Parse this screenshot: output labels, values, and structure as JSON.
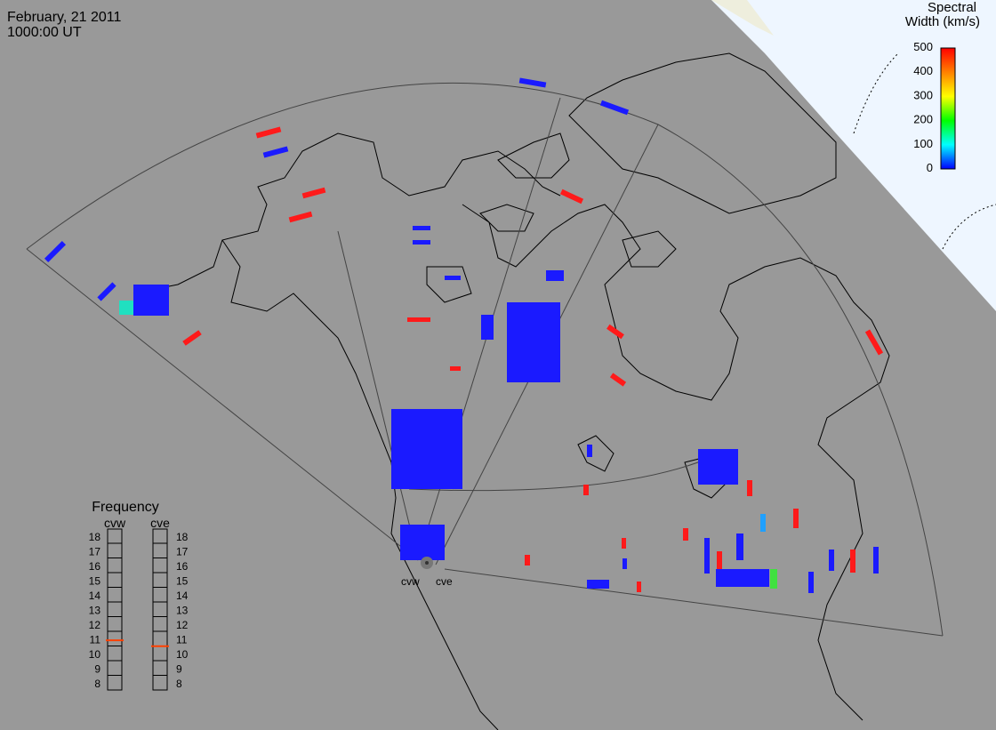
{
  "header": {
    "date": "February, 21 2011",
    "time": "1000:00 UT"
  },
  "legend": {
    "title_line1": "Spectral",
    "title_line2": "Width (km/s)",
    "ticks": [
      "500",
      "400",
      "300",
      "200",
      "100",
      "0"
    ],
    "tick_values": [
      500,
      400,
      300,
      200,
      100,
      0
    ],
    "range": [
      0,
      500
    ],
    "colors": [
      "#ff0000",
      "#ff8000",
      "#ffff00",
      "#00ff00",
      "#00ffff",
      "#0000ff"
    ]
  },
  "frequency": {
    "title": "Frequency",
    "labels": [
      "cvw",
      "cve"
    ],
    "scale": [
      "18",
      "17",
      "16",
      "15",
      "14",
      "13",
      "12",
      "11",
      "10",
      "9",
      "8"
    ],
    "range_mhz": [
      8,
      18
    ],
    "values_mhz": [
      10.9,
      10.5
    ],
    "marker_color": "#ff4000"
  },
  "radars": {
    "names": [
      "cvw",
      "cve"
    ]
  },
  "colors": {
    "background": "#999999",
    "dayside": "#eef6ff",
    "coastline": "#000000",
    "fov_outline": "#444444",
    "scatter_blue": "#1a1aff",
    "scatter_red": "#ff1a1a"
  }
}
